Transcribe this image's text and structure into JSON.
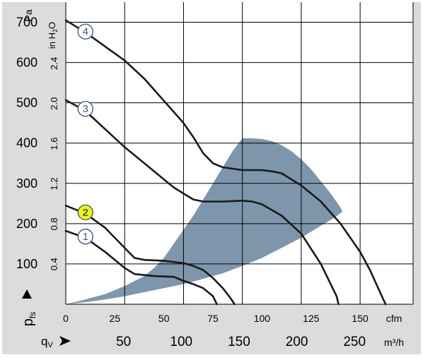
{
  "chart_data": {
    "type": "line",
    "title": "",
    "left_axis": {
      "unit": "Pa",
      "ticks": [
        100,
        200,
        300,
        400,
        500,
        600,
        700
      ],
      "range": [
        0,
        750
      ]
    },
    "inner_left_axis": {
      "unit": "in H2O",
      "unit_main": "in H",
      "unit_sub": "2",
      "unit_tail": "O",
      "ticks": [
        "0.4",
        "0.8",
        "1.2",
        "1.6",
        "2.0",
        "2.4"
      ],
      "tick_values": [
        0.4,
        0.8,
        1.2,
        1.6,
        2.0,
        2.4
      ]
    },
    "bottom_axis": {
      "unit": "cfm",
      "ticks": [
        0,
        25,
        50,
        75,
        100,
        125,
        150
      ],
      "range": [
        0,
        177
      ]
    },
    "lower_axis": {
      "unit": "m³/h",
      "ticks": [
        50,
        100,
        150,
        200,
        250
      ]
    },
    "ylabel": {
      "main": "p",
      "sub": "fs"
    },
    "xlabel": {
      "main": "q",
      "sub": "V"
    },
    "grid": true,
    "series": [
      {
        "name": "1",
        "x": [
          0,
          10,
          20,
          30,
          35,
          45,
          55,
          60,
          65,
          70,
          75,
          77
        ],
        "y": [
          182,
          165,
          130,
          90,
          75,
          70,
          68,
          58,
          50,
          40,
          20,
          0
        ],
        "label_at": [
          10,
          168
        ],
        "label_color": "#ffffff"
      },
      {
        "name": "2",
        "x": [
          0,
          10,
          20,
          30,
          35,
          40,
          50,
          60,
          65,
          70,
          75,
          80,
          84,
          86
        ],
        "y": [
          245,
          225,
          190,
          140,
          115,
          110,
          108,
          102,
          95,
          85,
          65,
          40,
          15,
          0
        ],
        "label_at": [
          10,
          228
        ],
        "label_color": "#f6f600"
      },
      {
        "name": "3",
        "x": [
          0,
          10,
          20,
          30,
          40,
          50,
          55,
          60,
          65,
          70,
          80,
          90,
          95,
          100,
          110,
          120,
          130,
          138,
          139
        ],
        "y": [
          507,
          480,
          435,
          390,
          350,
          310,
          290,
          275,
          260,
          255,
          255,
          257,
          255,
          248,
          220,
          175,
          100,
          20,
          0
        ],
        "label_at": [
          10,
          485
        ],
        "label_color": "#ffffff"
      },
      {
        "name": "4",
        "x": [
          0,
          10,
          20,
          30,
          40,
          50,
          60,
          65,
          70,
          75,
          80,
          90,
          100,
          105,
          110,
          115,
          120,
          130,
          140,
          150,
          155,
          162,
          163
        ],
        "y": [
          705,
          675,
          640,
          605,
          560,
          505,
          450,
          415,
          375,
          350,
          340,
          333,
          333,
          330,
          325,
          310,
          295,
          255,
          200,
          130,
          85,
          10,
          0
        ],
        "label_at": [
          10,
          677
        ],
        "label_color": "#ffffff"
      }
    ],
    "operating_range": {
      "color": "#7d96ab",
      "x": [
        0,
        10,
        20,
        30,
        40,
        45,
        50,
        55,
        60,
        65,
        70,
        75,
        80,
        85,
        90,
        95,
        100,
        105,
        110,
        115,
        120,
        125,
        130,
        135,
        140,
        141,
        137,
        130,
        120,
        110,
        100,
        90,
        80,
        70,
        60,
        50,
        40,
        30,
        20,
        10
      ],
      "y": [
        0,
        12,
        25,
        45,
        70,
        90,
        115,
        150,
        185,
        220,
        260,
        300,
        340,
        380,
        412,
        412,
        410,
        405,
        395,
        380,
        360,
        335,
        305,
        275,
        240,
        230,
        215,
        195,
        165,
        140,
        115,
        95,
        77,
        63,
        50,
        40,
        30,
        20,
        12,
        5
      ]
    },
    "background_color": "#dcdcdc",
    "curve_color": "#1a1a1a"
  }
}
